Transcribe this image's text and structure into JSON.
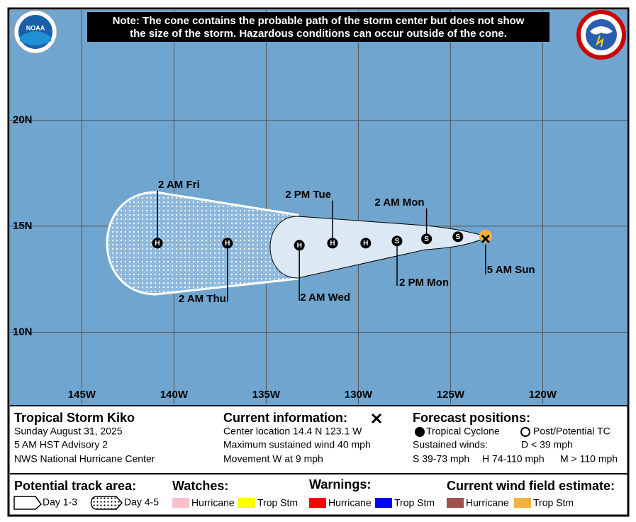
{
  "note": [
    "Note: The cone contains the probable path of the storm center but does not show",
    "the size of the storm. Hazardous conditions can occur outside of the cone."
  ],
  "logo": "NOAA",
  "map": {
    "xlim": [
      148.9,
      115.4
    ],
    "ylim": [
      6.6,
      25.2
    ],
    "xticks": [
      {
        "value": 145,
        "label": "145W"
      },
      {
        "value": 140,
        "label": "140W"
      },
      {
        "value": 135,
        "label": "135W"
      },
      {
        "value": 130,
        "label": "130W"
      },
      {
        "value": 125,
        "label": "125W"
      },
      {
        "value": 120,
        "label": "120W"
      }
    ],
    "yticks": [
      {
        "value": 20,
        "label": "20N"
      },
      {
        "value": 15,
        "label": "15N"
      },
      {
        "value": 10,
        "label": "10N"
      }
    ],
    "forecast_points": [
      {
        "lon": 140.9,
        "lat": 14.2,
        "type": "H",
        "label": "2 AM Fri"
      },
      {
        "lon": 137.1,
        "lat": 14.2,
        "type": "H",
        "label": "2 AM Thu"
      },
      {
        "lon": 133.2,
        "lat": 14.1,
        "type": "H",
        "label": "2 AM Wed"
      },
      {
        "lon": 131.4,
        "lat": 14.2,
        "type": "H",
        "label": "2 PM Tue"
      },
      {
        "lon": 129.6,
        "lat": 14.2,
        "type": "H"
      },
      {
        "lon": 127.9,
        "lat": 14.3,
        "type": "S",
        "label": "2 PM Mon"
      },
      {
        "lon": 126.3,
        "lat": 14.4,
        "type": "S",
        "label": "2 AM Mon"
      },
      {
        "lon": 124.6,
        "lat": 14.5,
        "type": "S"
      }
    ],
    "current": {
      "lon": 123.1,
      "lat": 14.4,
      "label": "5 AM Sun"
    }
  },
  "info": {
    "storm": "Tropical Storm Kiko",
    "date": "Sunday August 31, 2025",
    "advisory": "5 AM HST Advisory 2",
    "center": "NWS National Hurricane Center"
  },
  "current_info": {
    "title": "Current information:",
    "lines": [
      "Center location 14.4 N 123.1 W",
      "Maximum sustained wind 40 mph",
      "Movement W at 9 mph"
    ]
  },
  "forecast_legend": {
    "title": "Forecast positions:",
    "tropical": "Tropical Cyclone",
    "post": "Post/Potential TC",
    "winds": "Sustained winds:",
    "d": "D < 39 mph",
    "s": "S 39-73 mph",
    "h": "H 74-110 mph",
    "m": "M > 110 mph"
  },
  "track_legend": {
    "title": "Potential track area:",
    "day13": "Day 1-3",
    "day45": "Day 4-5"
  },
  "watches": {
    "title": "Watches:",
    "items": [
      {
        "label": "Hurricane",
        "color": "#ffc0cb"
      },
      {
        "label": "Trop Stm",
        "color": "#ffff00"
      }
    ]
  },
  "warnings": {
    "title": "Warnings:",
    "items": [
      {
        "label": "Hurricane",
        "color": "#ff0000"
      },
      {
        "label": "Trop Stm",
        "color": "#0000ff"
      }
    ]
  },
  "wind_field": {
    "title": "Current wind field estimate:",
    "items": [
      {
        "label": "Hurricane",
        "color": "#a0524a"
      },
      {
        "label": "Trop Stm",
        "color": "#f5b041"
      }
    ]
  }
}
